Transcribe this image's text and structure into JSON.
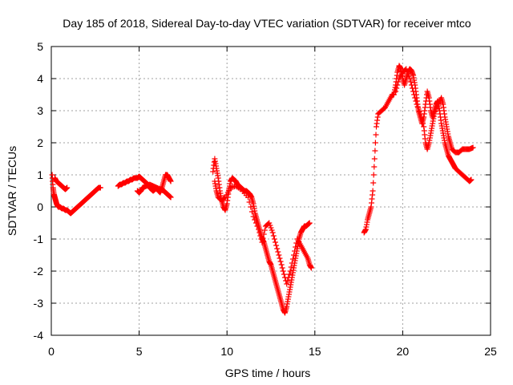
{
  "chart_data": {
    "type": "scatter",
    "title": "Day 185 of 2018, Sidereal Day-to-day VTEC variation (SDTVAR) for receiver mtco",
    "xlabel": "GPS time / hours",
    "ylabel": "SDTVAR / TECUs",
    "xlim": [
      0,
      25
    ],
    "ylim": [
      -4,
      5
    ],
    "xticks": [
      0,
      5,
      10,
      15,
      20,
      25
    ],
    "yticks": [
      -4,
      -3,
      -2,
      -1,
      0,
      1,
      2,
      3,
      4,
      5
    ],
    "grid": true,
    "marker": "+",
    "marker_color": "#ff0000",
    "series": [
      {
        "segments": [
          {
            "points": [
              [
                0.05,
                1.0
              ],
              [
                0.1,
                0.6
              ],
              [
                0.15,
                0.4
              ],
              [
                0.2,
                0.3
              ],
              [
                0.25,
                0.2
              ],
              [
                0.3,
                0.1
              ],
              [
                0.35,
                0.05
              ],
              [
                0.4,
                0.0
              ],
              [
                0.5,
                0.0
              ],
              [
                0.6,
                -0.05
              ],
              [
                0.7,
                -0.05
              ],
              [
                0.8,
                -0.1
              ],
              [
                0.9,
                -0.1
              ],
              [
                1.0,
                -0.15
              ],
              [
                1.1,
                -0.2
              ],
              [
                1.2,
                -0.15
              ],
              [
                1.3,
                -0.1
              ],
              [
                1.4,
                -0.05
              ],
              [
                1.5,
                0.0
              ],
              [
                1.6,
                0.05
              ],
              [
                1.7,
                0.1
              ],
              [
                1.8,
                0.15
              ],
              [
                1.9,
                0.2
              ],
              [
                2.0,
                0.25
              ],
              [
                2.1,
                0.3
              ],
              [
                2.2,
                0.35
              ],
              [
                2.3,
                0.4
              ],
              [
                2.4,
                0.45
              ],
              [
                2.5,
                0.5
              ],
              [
                2.6,
                0.55
              ],
              [
                2.7,
                0.6
              ],
              [
                2.8,
                0.6
              ]
            ]
          },
          {
            "points": [
              [
                0.2,
                0.9
              ],
              [
                0.3,
                0.8
              ],
              [
                0.4,
                0.75
              ],
              [
                0.5,
                0.7
              ],
              [
                0.6,
                0.65
              ],
              [
                0.7,
                0.6
              ],
              [
                0.8,
                0.55
              ],
              [
                0.9,
                0.6
              ]
            ]
          },
          {
            "points": [
              [
                3.8,
                0.65
              ],
              [
                3.9,
                0.7
              ],
              [
                4.0,
                0.7
              ],
              [
                4.1,
                0.75
              ],
              [
                4.2,
                0.75
              ],
              [
                4.3,
                0.8
              ],
              [
                4.4,
                0.8
              ],
              [
                4.5,
                0.85
              ],
              [
                4.6,
                0.85
              ],
              [
                4.7,
                0.9
              ],
              [
                4.8,
                0.9
              ],
              [
                4.9,
                0.9
              ],
              [
                5.0,
                0.95
              ],
              [
                5.1,
                0.9
              ],
              [
                5.2,
                0.85
              ],
              [
                5.3,
                0.8
              ],
              [
                5.4,
                0.75
              ],
              [
                5.5,
                0.7
              ],
              [
                5.6,
                0.6
              ],
              [
                5.7,
                0.55
              ],
              [
                5.8,
                0.5
              ],
              [
                5.9,
                0.55
              ],
              [
                6.0,
                0.6
              ],
              [
                6.1,
                0.5
              ],
              [
                6.2,
                0.45
              ],
              [
                6.3,
                0.6
              ],
              [
                6.4,
                0.8
              ],
              [
                6.5,
                1.0
              ],
              [
                6.6,
                1.0
              ],
              [
                6.7,
                0.9
              ],
              [
                6.8,
                0.8
              ]
            ]
          },
          {
            "points": [
              [
                4.9,
                0.5
              ],
              [
                5.0,
                0.45
              ],
              [
                5.1,
                0.5
              ],
              [
                5.2,
                0.6
              ],
              [
                5.4,
                0.65
              ],
              [
                5.6,
                0.7
              ],
              [
                5.8,
                0.65
              ],
              [
                6.0,
                0.6
              ],
              [
                6.2,
                0.55
              ],
              [
                6.4,
                0.5
              ],
              [
                6.5,
                0.45
              ],
              [
                6.6,
                0.4
              ],
              [
                6.7,
                0.35
              ],
              [
                6.8,
                0.3
              ]
            ]
          },
          {
            "points": [
              [
                9.2,
                1.1
              ],
              [
                9.3,
                1.5
              ],
              [
                9.4,
                1.2
              ],
              [
                9.5,
                0.9
              ],
              [
                9.6,
                0.5
              ],
              [
                9.7,
                0.2
              ],
              [
                9.8,
                0.0
              ],
              [
                9.9,
                -0.1
              ],
              [
                10.0,
                0.1
              ],
              [
                10.1,
                0.5
              ],
              [
                10.2,
                0.8
              ],
              [
                10.3,
                0.9
              ],
              [
                10.4,
                0.85
              ],
              [
                10.5,
                0.8
              ],
              [
                10.6,
                0.7
              ],
              [
                10.7,
                0.65
              ],
              [
                10.8,
                0.6
              ],
              [
                10.9,
                0.55
              ],
              [
                11.0,
                0.5
              ],
              [
                11.1,
                0.5
              ],
              [
                11.2,
                0.45
              ],
              [
                11.3,
                0.4
              ],
              [
                11.4,
                0.3
              ],
              [
                11.5,
                0.1
              ],
              [
                11.6,
                -0.2
              ],
              [
                11.7,
                -0.4
              ],
              [
                11.8,
                -0.6
              ],
              [
                11.9,
                -0.8
              ],
              [
                12.0,
                -1.0
              ],
              [
                12.1,
                -1.1
              ],
              [
                12.2,
                -1.3
              ],
              [
                12.3,
                -1.5
              ],
              [
                12.4,
                -1.7
              ],
              [
                12.5,
                -1.8
              ],
              [
                12.6,
                -2.0
              ],
              [
                12.7,
                -2.2
              ],
              [
                12.8,
                -2.4
              ],
              [
                12.9,
                -2.6
              ],
              [
                13.0,
                -2.8
              ],
              [
                13.1,
                -3.0
              ],
              [
                13.2,
                -3.2
              ],
              [
                13.3,
                -3.3
              ],
              [
                13.4,
                -3.1
              ],
              [
                13.5,
                -2.8
              ],
              [
                13.6,
                -2.5
              ],
              [
                13.7,
                -2.2
              ],
              [
                13.8,
                -1.9
              ],
              [
                13.9,
                -1.6
              ],
              [
                14.0,
                -1.3
              ],
              [
                14.1,
                -1.0
              ],
              [
                14.2,
                -0.8
              ],
              [
                14.3,
                -0.7
              ],
              [
                14.4,
                -0.6
              ],
              [
                14.5,
                -0.6
              ],
              [
                14.6,
                -0.55
              ],
              [
                14.7,
                -0.5
              ]
            ]
          },
          {
            "points": [
              [
                9.3,
                0.8
              ],
              [
                9.4,
                0.5
              ],
              [
                9.5,
                0.3
              ],
              [
                9.7,
                0.2
              ],
              [
                9.9,
                0.3
              ],
              [
                10.2,
                0.6
              ],
              [
                10.5,
                0.65
              ],
              [
                10.8,
                0.55
              ],
              [
                11.2,
                0.3
              ],
              [
                11.5,
                -0.3
              ],
              [
                11.8,
                -0.7
              ],
              [
                12.0,
                -1.1
              ],
              [
                12.2,
                -0.6
              ],
              [
                12.4,
                -0.5
              ],
              [
                12.6,
                -0.8
              ],
              [
                12.8,
                -1.2
              ],
              [
                13.0,
                -1.6
              ],
              [
                13.2,
                -2.0
              ],
              [
                13.4,
                -2.4
              ],
              [
                13.6,
                -2.0
              ],
              [
                13.8,
                -1.5
              ],
              [
                14.0,
                -1.0
              ],
              [
                14.2,
                -1.2
              ],
              [
                14.4,
                -1.4
              ],
              [
                14.6,
                -1.6
              ],
              [
                14.7,
                -1.8
              ],
              [
                14.8,
                -1.9
              ]
            ]
          },
          {
            "points": [
              [
                17.8,
                -0.8
              ],
              [
                17.9,
                -0.7
              ],
              [
                18.0,
                -0.4
              ],
              [
                18.1,
                -0.2
              ],
              [
                18.2,
                0.0
              ],
              [
                18.3,
                0.5
              ],
              [
                18.4,
                1.5
              ],
              [
                18.5,
                2.5
              ],
              [
                18.6,
                2.9
              ],
              [
                18.8,
                3.0
              ],
              [
                19.0,
                3.1
              ],
              [
                19.2,
                3.3
              ],
              [
                19.4,
                3.5
              ],
              [
                19.5,
                3.5
              ],
              [
                19.6,
                3.8
              ],
              [
                19.7,
                4.2
              ],
              [
                19.8,
                4.4
              ],
              [
                19.9,
                4.3
              ],
              [
                20.0,
                4.0
              ],
              [
                20.1,
                3.8
              ],
              [
                20.2,
                4.0
              ],
              [
                20.3,
                4.2
              ],
              [
                20.4,
                4.3
              ],
              [
                20.5,
                4.25
              ],
              [
                20.6,
                4.1
              ],
              [
                20.7,
                3.8
              ],
              [
                20.8,
                3.4
              ],
              [
                20.9,
                3.0
              ],
              [
                21.0,
                2.8
              ],
              [
                21.1,
                2.6
              ],
              [
                21.2,
                2.8
              ],
              [
                21.3,
                3.2
              ],
              [
                21.4,
                3.6
              ],
              [
                21.5,
                3.4
              ],
              [
                21.6,
                3.0
              ],
              [
                21.7,
                2.8
              ],
              [
                21.8,
                3.0
              ],
              [
                21.9,
                3.2
              ],
              [
                22.0,
                3.3
              ],
              [
                22.1,
                3.0
              ],
              [
                22.2,
                2.6
              ],
              [
                22.3,
                2.3
              ],
              [
                22.4,
                2.0
              ],
              [
                22.5,
                1.8
              ],
              [
                22.6,
                1.6
              ],
              [
                22.7,
                1.5
              ],
              [
                22.8,
                1.4
              ],
              [
                22.9,
                1.3
              ],
              [
                23.0,
                1.2
              ],
              [
                23.2,
                1.1
              ],
              [
                23.4,
                1.0
              ],
              [
                23.6,
                0.9
              ],
              [
                23.8,
                0.8
              ],
              [
                23.9,
                0.85
              ]
            ]
          },
          {
            "points": [
              [
                19.6,
                3.6
              ],
              [
                19.8,
                4.0
              ],
              [
                20.0,
                4.2
              ],
              [
                20.2,
                4.3
              ],
              [
                20.4,
                4.0
              ],
              [
                20.6,
                3.6
              ],
              [
                20.8,
                3.2
              ],
              [
                21.0,
                2.9
              ],
              [
                21.2,
                2.5
              ],
              [
                21.3,
                2.0
              ],
              [
                21.4,
                1.8
              ],
              [
                21.5,
                2.0
              ],
              [
                21.6,
                2.3
              ],
              [
                21.7,
                2.6
              ],
              [
                21.8,
                2.9
              ],
              [
                22.0,
                3.2
              ],
              [
                22.2,
                3.4
              ],
              [
                22.3,
                3.2
              ],
              [
                22.4,
                2.8
              ],
              [
                22.5,
                2.5
              ],
              [
                22.6,
                2.2
              ],
              [
                22.7,
                2.0
              ],
              [
                22.8,
                1.8
              ],
              [
                23.0,
                1.7
              ],
              [
                23.2,
                1.7
              ],
              [
                23.4,
                1.8
              ],
              [
                23.6,
                1.8
              ],
              [
                23.8,
                1.8
              ],
              [
                24.0,
                1.85
              ]
            ]
          }
        ]
      }
    ]
  }
}
